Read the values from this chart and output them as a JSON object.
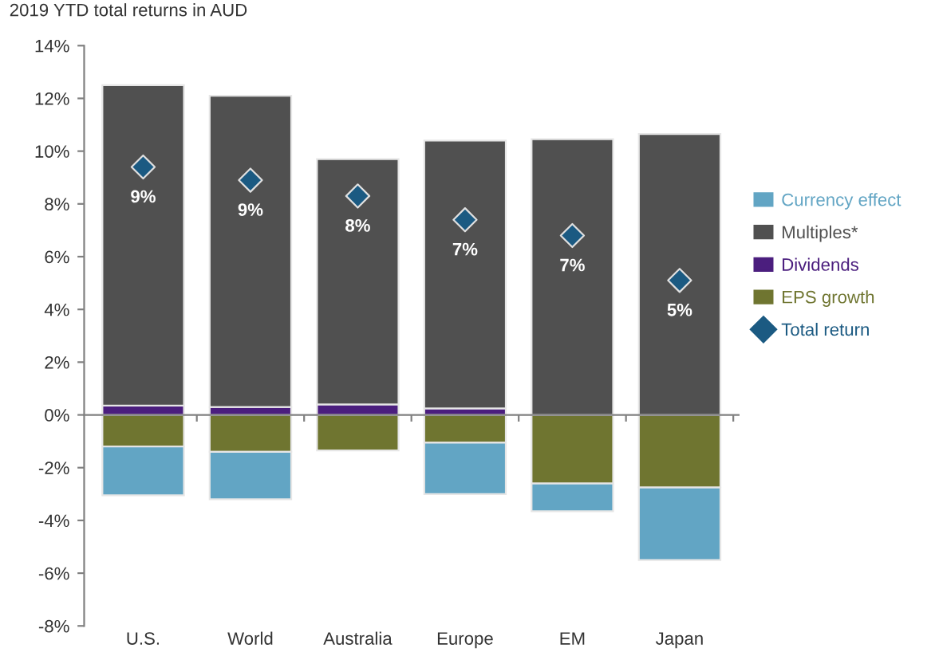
{
  "chart_data": {
    "type": "bar",
    "title": "2019 YTD total returns in AUD",
    "stacked": true,
    "categories": [
      "U.S.",
      "World",
      "Australia",
      "Europe",
      "EM",
      "Japan"
    ],
    "series": [
      {
        "name": "EPS growth",
        "color": "#6f7530",
        "values": [
          -1.2,
          -1.4,
          -1.35,
          -1.05,
          -2.6,
          -2.75
        ]
      },
      {
        "name": "Dividends",
        "color": "#4b1e7e",
        "values": [
          0.35,
          0.3,
          0.4,
          0.25,
          0,
          0
        ]
      },
      {
        "name": "Multiples*",
        "color": "#505050",
        "values": [
          12.15,
          11.8,
          9.3,
          10.15,
          10.45,
          10.65
        ]
      },
      {
        "name": "Currency effect",
        "color": "#62a5c4",
        "values": [
          -1.85,
          -1.8,
          0,
          -1.95,
          -1.05,
          -2.75
        ]
      },
      {
        "name": "Total return",
        "type": "scatter",
        "color": "#1b5a82",
        "marker": "diamond",
        "values": [
          9.4,
          8.9,
          8.3,
          7.4,
          6.8,
          5.1
        ],
        "value_labels": [
          "9%",
          "9%",
          "8%",
          "7%",
          "7%",
          "5%"
        ]
      }
    ],
    "ylim": [
      -8,
      14
    ],
    "yticks": [
      {
        "value": -8,
        "label": "-8%"
      },
      {
        "value": -6,
        "label": "-6%"
      },
      {
        "value": -4,
        "label": "-4%"
      },
      {
        "value": -2,
        "label": "-2%"
      },
      {
        "value": 0,
        "label": "0%"
      },
      {
        "value": 2,
        "label": "2%"
      },
      {
        "value": 4,
        "label": "4%"
      },
      {
        "value": 6,
        "label": "6%"
      },
      {
        "value": 8,
        "label": "8%"
      },
      {
        "value": 10,
        "label": "10%"
      },
      {
        "value": 12,
        "label": "12%"
      },
      {
        "value": 14,
        "label": "14%"
      }
    ],
    "legend": "right"
  }
}
